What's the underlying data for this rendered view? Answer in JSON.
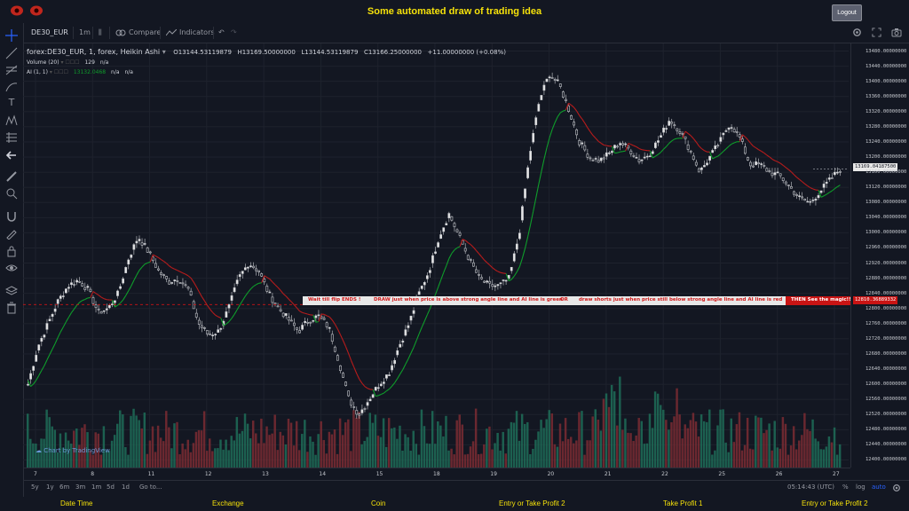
{
  "header": {
    "title": "Some automated draw of trading idea",
    "logout_label": "Logout"
  },
  "toolbar": {
    "symbol": "DE30_EUR",
    "interval": "1m",
    "compare_label": "Compare",
    "indicators_label": "Indicators"
  },
  "legend": {
    "symbol_line": "forex:DE30_EUR, 1, forex, Heikin Ashi",
    "open": "O13144.53119879",
    "high": "H13169.50000000",
    "low": "L13144.53119879",
    "close": "C13166.25000000",
    "change": "+11.00000000 (+0.08%)",
    "volume_label": "Volume (20)",
    "volume_value": "129",
    "volume_na": "n/a",
    "ai_label": "AI (1, 1)",
    "ai_value": "13132.0468",
    "ai_na1": "n/a",
    "ai_na2": "n/a"
  },
  "banner": {
    "part1": "Wait till flip ENDS  !",
    "part2": "DRAW just when price is above strong angle line and AI line is green",
    "part3": "OR",
    "part4": "draw shorts just when price still below strong angle line and AI line is red",
    "part5": "THEN See the magic!!"
  },
  "price_axis": {
    "ticks": [
      "13480.00000000",
      "13440.00000000",
      "13400.00000000",
      "13360.00000000",
      "13320.00000000",
      "13280.00000000",
      "13240.00000000",
      "13200.00000000",
      "13160.00000000",
      "13120.00000000",
      "13080.00000000",
      "13040.00000000",
      "13000.00000000",
      "12960.00000000",
      "12920.00000000",
      "12880.00000000",
      "12840.00000000",
      "12800.00000000",
      "12760.00000000",
      "12720.00000000",
      "12680.00000000",
      "12640.00000000",
      "12600.00000000",
      "12560.00000000",
      "12520.00000000",
      "12480.00000000",
      "12440.00000000",
      "12400.00000000"
    ],
    "current_price": "13169.04187500",
    "marker_price": "12810.36889332"
  },
  "time_axis": {
    "ticks": [
      "7",
      "8",
      "11",
      "12",
      "13",
      "14",
      "15",
      "18",
      "19",
      "20",
      "21",
      "22",
      "25",
      "26",
      "27"
    ]
  },
  "bottom_bar": {
    "ranges": [
      "5y",
      "1y",
      "6m",
      "3m",
      "1m",
      "5d",
      "1d"
    ],
    "goto": "Go to...",
    "clock": "05:14:43 (UTC)",
    "percent": "%",
    "log": "log",
    "auto": "auto"
  },
  "watermark": "Chart by TradingView",
  "footer": {
    "items": [
      "Date Time",
      "Exchange",
      "Coin",
      "Entry or Take Profit 2",
      "Take Profit 1",
      "Entry or Take Profit 2"
    ]
  },
  "colors": {
    "background": "#131722",
    "up": "#26a69a",
    "down": "#ef5350",
    "ai_green": "#0f9d2b",
    "ai_red": "#b71c1c",
    "title": "#f5e10a"
  },
  "chart_data": {
    "type": "candlestick",
    "style": "Heikin Ashi",
    "ylim": [
      12380,
      13500
    ],
    "close_path": [
      12600,
      12700,
      12760,
      12820,
      12860,
      12875,
      12850,
      12790,
      12800,
      12840,
      12930,
      12990,
      12950,
      12900,
      12870,
      12880,
      12850,
      12760,
      12730,
      12740,
      12800,
      12880,
      12920,
      12900,
      12840,
      12800,
      12770,
      12740,
      12770,
      12780,
      12750,
      12660,
      12560,
      12520,
      12560,
      12600,
      12630,
      12700,
      12760,
      12840,
      12900,
      12990,
      13050,
      12990,
      12930,
      12880,
      12860,
      12860,
      12880,
      13000,
      13200,
      13350,
      13420,
      13390,
      13320,
      13240,
      13200,
      13190,
      13210,
      13240,
      13220,
      13190,
      13210,
      13250,
      13300,
      13270,
      13220,
      13160,
      13200,
      13240,
      13290,
      13250,
      13180,
      13180,
      13160,
      13150,
      13120,
      13090,
      13080,
      13110,
      13140,
      13169
    ]
  }
}
